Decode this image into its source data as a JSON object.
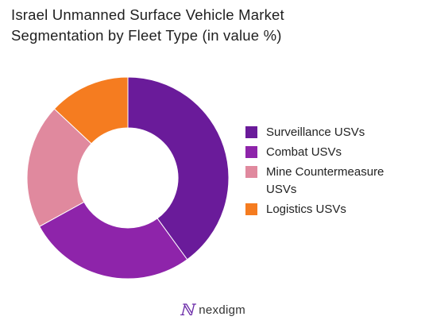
{
  "title": {
    "line1": "Israel Unmanned Surface Vehicle Market",
    "line2": "Segmentation by Fleet Type (in value %)"
  },
  "chart_data": {
    "type": "pie",
    "donut": true,
    "title": "Israel Unmanned Surface Vehicle Market Segmentation by Fleet Type (in value %)",
    "categories": [
      "Surveillance USVs",
      "Combat USVs",
      "Mine Countermeasure USVs",
      "Logistics USVs"
    ],
    "values": [
      40,
      27,
      20,
      13
    ],
    "colors": [
      "#6a1b9a",
      "#8e24aa",
      "#e0899e",
      "#f57c20"
    ],
    "legend_placement": "right"
  },
  "footer": {
    "brand": "nexdigm",
    "icon": "nexdigm-logo-icon"
  }
}
